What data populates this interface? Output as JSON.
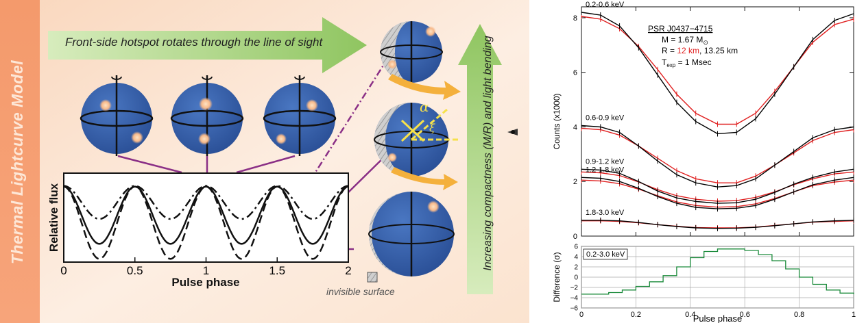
{
  "left": {
    "title": "Thermal Lightcurve Model",
    "arrow_text": "Front-side hotspot rotates through the line of sight",
    "vertical_arrow_text": "Increasing compactness (M/R) and light bending",
    "inset": {
      "ylabel": "Relative flux",
      "xlabel": "Pulse phase",
      "xticks": [
        "0",
        "0.5",
        "1",
        "1.5",
        "2"
      ]
    },
    "legend_invisible": "invisible surface",
    "greek_alpha": "α",
    "greek_xi": "ξ",
    "colors": {
      "sphere": "#2f5aa6",
      "banner": "#f7c9a8",
      "arrow_green": "#9ccc6a",
      "arrow_orange": "#f4b03c",
      "connector": "#8a2f86",
      "hotspot": "#f9c99a"
    }
  },
  "chart_data": [
    {
      "type": "line",
      "title": "PSR J0437−4715",
      "ylabel": "Counts (x1000)",
      "ylim": [
        0,
        8.4
      ],
      "xlim": [
        0,
        1
      ],
      "yticks": [
        "0",
        "2",
        "4",
        "6",
        "8"
      ],
      "annotation": {
        "name": "PSR J0437−4715",
        "mass_prefix": "M = 1.67 M",
        "mass_suffix": "⊙",
        "radius_prefix": "R = ",
        "radius_red": "12 km",
        "radius_suffix": ", 13.25 km",
        "texp_prefix": "T",
        "texp_sub": "exp",
        "texp_suffix": " = 1 Msec"
      },
      "colors": {
        "R = 13.25 km": "#000000",
        "R = 12 km": "#e02020"
      },
      "bands": [
        {
          "label": "0.2-0.6 keV",
          "black": [
            8.2,
            8.1,
            7.7,
            6.9,
            5.9,
            4.9,
            4.2,
            3.75,
            3.8,
            4.3,
            5.2,
            6.2,
            7.2,
            7.9,
            8.15
          ],
          "red": [
            8.05,
            7.95,
            7.6,
            6.95,
            6.1,
            5.2,
            4.5,
            4.1,
            4.1,
            4.5,
            5.3,
            6.2,
            7.1,
            7.75,
            7.95
          ]
        },
        {
          "label": "0.6-0.9 keV",
          "black": [
            4.05,
            4.0,
            3.8,
            3.3,
            2.75,
            2.25,
            1.95,
            1.8,
            1.85,
            2.1,
            2.6,
            3.1,
            3.6,
            3.9,
            4.0
          ],
          "red": [
            3.95,
            3.9,
            3.7,
            3.3,
            2.85,
            2.4,
            2.1,
            1.95,
            1.95,
            2.2,
            2.6,
            3.05,
            3.5,
            3.8,
            3.9
          ]
        },
        {
          "label": "0.9-1.2 keV",
          "black": [
            2.45,
            2.42,
            2.3,
            2.0,
            1.65,
            1.4,
            1.27,
            1.2,
            1.22,
            1.35,
            1.6,
            1.9,
            2.15,
            2.35,
            2.45
          ],
          "red": [
            2.35,
            2.32,
            2.22,
            1.98,
            1.7,
            1.48,
            1.35,
            1.28,
            1.3,
            1.42,
            1.62,
            1.88,
            2.1,
            2.28,
            2.35
          ]
        },
        {
          "label": "1.2-1.8 keV",
          "black": [
            2.15,
            2.12,
            2.0,
            1.75,
            1.45,
            1.2,
            1.05,
            1.0,
            1.02,
            1.12,
            1.35,
            1.62,
            1.88,
            2.05,
            2.15
          ],
          "red": [
            2.05,
            2.02,
            1.92,
            1.72,
            1.48,
            1.25,
            1.12,
            1.06,
            1.08,
            1.18,
            1.38,
            1.62,
            1.85,
            1.98,
            2.05
          ]
        },
        {
          "label": "1.8-3.0 keV",
          "black": [
            0.58,
            0.58,
            0.56,
            0.5,
            0.42,
            0.35,
            0.3,
            0.28,
            0.29,
            0.32,
            0.38,
            0.45,
            0.52,
            0.56,
            0.58
          ],
          "red": [
            0.56,
            0.56,
            0.54,
            0.49,
            0.42,
            0.36,
            0.31,
            0.3,
            0.3,
            0.33,
            0.39,
            0.45,
            0.51,
            0.54,
            0.56
          ]
        }
      ],
      "x": [
        0,
        0.07,
        0.14,
        0.21,
        0.28,
        0.35,
        0.42,
        0.5,
        0.57,
        0.64,
        0.71,
        0.78,
        0.85,
        0.93,
        1.0
      ]
    },
    {
      "type": "line",
      "ylabel": "Difference (σ)",
      "xlabel": "Pulse phase",
      "ylim": [
        -6,
        6
      ],
      "xlim": [
        0,
        1
      ],
      "yticks": [
        "6",
        "4",
        "2",
        "0",
        "−2",
        "−4",
        "−6"
      ],
      "xticks": [
        "0",
        "0.2",
        "0.4",
        "0.6",
        "0.8",
        "1"
      ],
      "band_label": "0.2-3.0 keV",
      "series_color": "#1a8a3a",
      "x": [
        0,
        0.05,
        0.1,
        0.15,
        0.2,
        0.25,
        0.3,
        0.35,
        0.4,
        0.45,
        0.5,
        0.55,
        0.6,
        0.65,
        0.7,
        0.75,
        0.8,
        0.85,
        0.9,
        0.95,
        1.0
      ],
      "values": [
        -3.3,
        -3.3,
        -3.0,
        -2.5,
        -1.8,
        -0.9,
        0.3,
        2.0,
        3.8,
        5.0,
        5.5,
        5.5,
        5.2,
        4.4,
        3.2,
        1.6,
        0.0,
        -1.4,
        -2.5,
        -3.1,
        -3.3
      ]
    }
  ]
}
